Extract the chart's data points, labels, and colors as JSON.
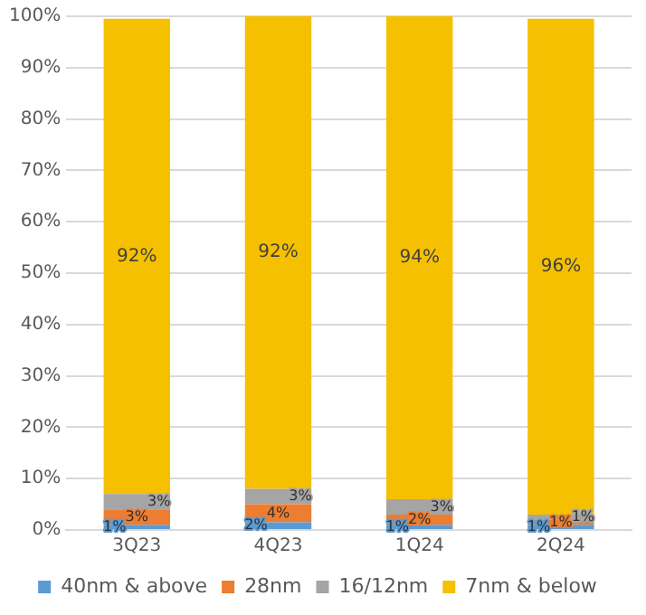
{
  "chart_data": {
    "type": "bar",
    "stacked": true,
    "categories": [
      "3Q23",
      "4Q23",
      "1Q24",
      "2Q24"
    ],
    "series": [
      {
        "name": "40nm & above",
        "color": "#5b9bd5",
        "values": [
          1,
          1.5,
          1,
          1
        ],
        "value_labels": [
          "1%",
          "2%",
          "1%",
          "1%"
        ]
      },
      {
        "name": "28nm",
        "color": "#ed7d31",
        "values": [
          3,
          3.5,
          2,
          1
        ],
        "value_labels": [
          "3%",
          "4%",
          "2%",
          "1%"
        ]
      },
      {
        "name": "16/12nm",
        "color": "#a5a5a5",
        "values": [
          3,
          3,
          3,
          1
        ],
        "value_labels": [
          "3%",
          "3%",
          "3%",
          "1%"
        ]
      },
      {
        "name": "7nm & below",
        "color": "#f5c000",
        "values": [
          92.5,
          92,
          94,
          96.5
        ],
        "value_labels": [
          "92%",
          "92%",
          "94%",
          "96%"
        ]
      }
    ],
    "ylim": [
      0,
      100
    ],
    "yticks": [
      {
        "value": 0,
        "label": "0%"
      },
      {
        "value": 10,
        "label": "10%"
      },
      {
        "value": 20,
        "label": "20%"
      },
      {
        "value": 30,
        "label": "30%"
      },
      {
        "value": 40,
        "label": "40%"
      },
      {
        "value": 50,
        "label": "50%"
      },
      {
        "value": 60,
        "label": "60%"
      },
      {
        "value": 70,
        "label": "70%"
      },
      {
        "value": 80,
        "label": "80%"
      },
      {
        "value": 90,
        "label": "90%"
      },
      {
        "value": 100,
        "label": "100%"
      }
    ],
    "grid": "y",
    "legend": "bottom"
  }
}
